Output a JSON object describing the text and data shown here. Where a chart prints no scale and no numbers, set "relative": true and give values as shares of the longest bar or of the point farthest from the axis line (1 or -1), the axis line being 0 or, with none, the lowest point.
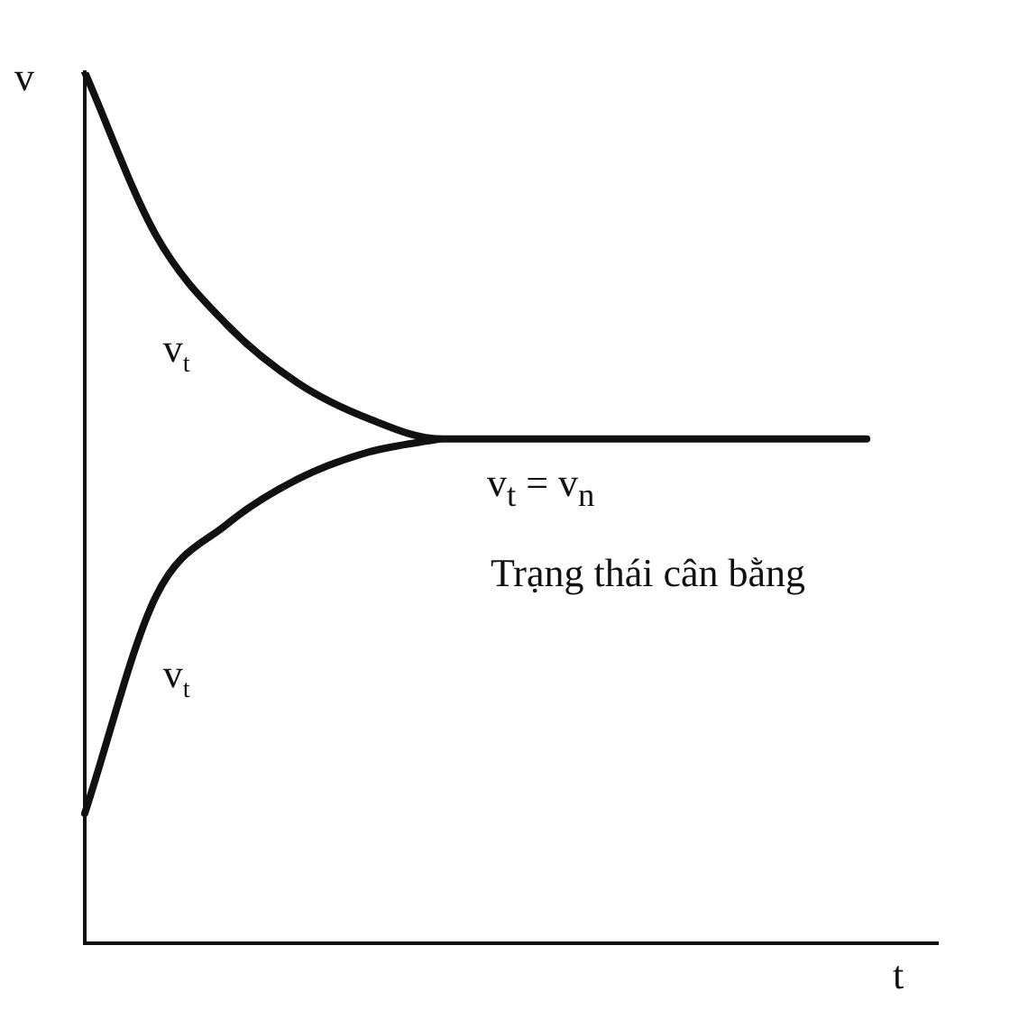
{
  "chart_data": {
    "type": "line",
    "relative": true,
    "xlabel": "t",
    "ylabel": "v",
    "categories": [
      null,
      null,
      null,
      null,
      null,
      null,
      null,
      null,
      null,
      null,
      null,
      null,
      null
    ],
    "series": [
      {
        "name": "v$_{t}$",
        "color": "#111111",
        "values": [
          1,
          0.813,
          0.71,
          0.643,
          0.602,
          0.579,
          0.579,
          0.579,
          0.579,
          0.579,
          0.579,
          0.579,
          null
        ]
      },
      {
        "name": "v$_{t}$",
        "color": "#111111",
        "values": [
          0.149,
          0.398,
          0.481,
          0.533,
          0.564,
          0.579,
          null,
          null,
          null,
          null,
          null,
          null,
          null
        ]
      }
    ],
    "annotations": [
      "v$_{t}$ = v$_{n}$",
      "Trạng thái cân bằng"
    ],
    "legend": false,
    "grid": false,
    "marker": "none",
    "line_style": "solid"
  }
}
